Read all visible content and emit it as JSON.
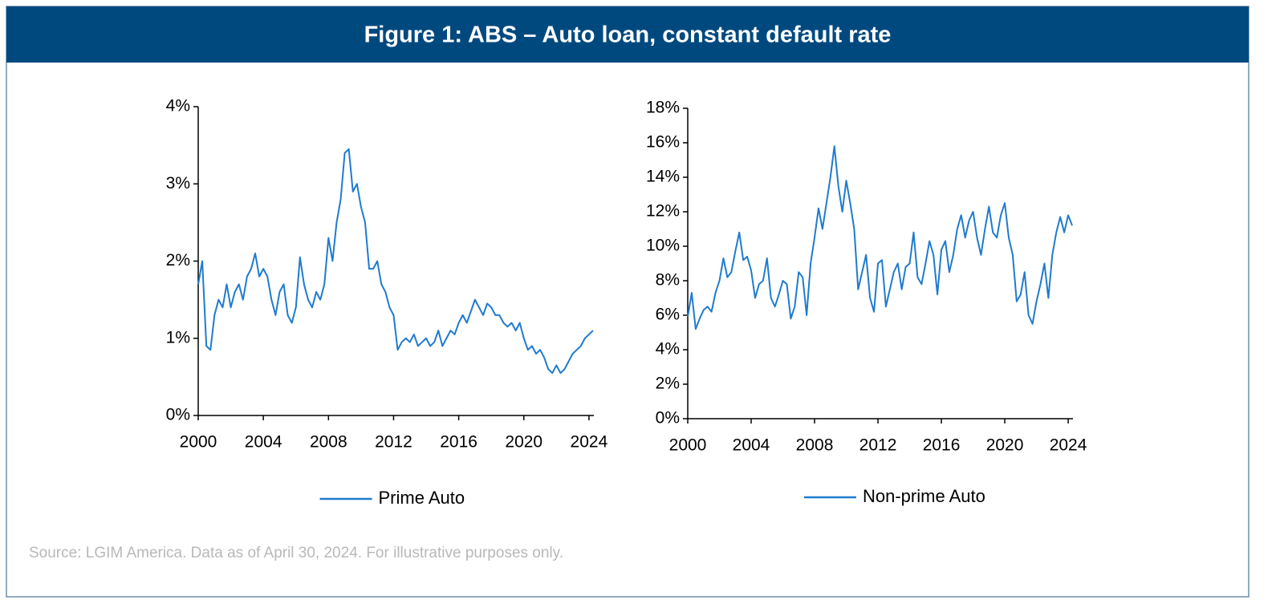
{
  "title": "Figure 1: ABS – Auto loan, constant default rate",
  "source": "Source: LGIM America. Data as of April 30, 2024. For illustrative purposes only.",
  "chart_data": [
    {
      "type": "line",
      "legend": "bottom",
      "x": [
        2000,
        2000.25,
        2000.5,
        2000.75,
        2001,
        2001.25,
        2001.5,
        2001.75,
        2002,
        2002.25,
        2002.5,
        2002.75,
        2003,
        2003.25,
        2003.5,
        2003.75,
        2004,
        2004.25,
        2004.5,
        2004.75,
        2005,
        2005.25,
        2005.5,
        2005.75,
        2006,
        2006.25,
        2006.5,
        2006.75,
        2007,
        2007.25,
        2007.5,
        2007.75,
        2008,
        2008.25,
        2008.5,
        2008.75,
        2009,
        2009.25,
        2009.5,
        2009.75,
        2010,
        2010.25,
        2010.5,
        2010.75,
        2011,
        2011.25,
        2011.5,
        2011.75,
        2012,
        2012.25,
        2012.5,
        2012.75,
        2013,
        2013.25,
        2013.5,
        2013.75,
        2014,
        2014.25,
        2014.5,
        2014.75,
        2015,
        2015.25,
        2015.5,
        2015.75,
        2016,
        2016.25,
        2016.5,
        2016.75,
        2017,
        2017.25,
        2017.5,
        2017.75,
        2018,
        2018.25,
        2018.5,
        2018.75,
        2019,
        2019.25,
        2019.5,
        2019.75,
        2020,
        2020.25,
        2020.5,
        2020.75,
        2021,
        2021.25,
        2021.5,
        2021.75,
        2022,
        2022.25,
        2022.5,
        2022.75,
        2023,
        2023.25,
        2023.5,
        2023.75,
        2024,
        2024.25
      ],
      "series": [
        {
          "name": "Prime Auto",
          "color": "#1f7bcf",
          "values": [
            1.7,
            2.0,
            0.9,
            0.85,
            1.3,
            1.5,
            1.4,
            1.7,
            1.4,
            1.6,
            1.7,
            1.5,
            1.8,
            1.9,
            2.1,
            1.8,
            1.9,
            1.8,
            1.5,
            1.3,
            1.6,
            1.7,
            1.3,
            1.2,
            1.4,
            2.05,
            1.7,
            1.5,
            1.4,
            1.6,
            1.5,
            1.7,
            2.3,
            2.0,
            2.5,
            2.8,
            3.4,
            3.45,
            2.9,
            3.0,
            2.7,
            2.5,
            1.9,
            1.9,
            2.0,
            1.7,
            1.6,
            1.4,
            1.3,
            0.85,
            0.95,
            1.0,
            0.95,
            1.05,
            0.9,
            0.95,
            1.0,
            0.9,
            0.95,
            1.1,
            0.9,
            1.0,
            1.1,
            1.05,
            1.2,
            1.3,
            1.2,
            1.35,
            1.5,
            1.4,
            1.3,
            1.45,
            1.4,
            1.3,
            1.3,
            1.2,
            1.15,
            1.2,
            1.1,
            1.2,
            1.0,
            0.85,
            0.9,
            0.8,
            0.85,
            0.75,
            0.6,
            0.55,
            0.65,
            0.55,
            0.6,
            0.7,
            0.8,
            0.85,
            0.9,
            1.0,
            1.05,
            1.1
          ]
        }
      ],
      "xlim": [
        2000,
        2024.3
      ],
      "xticks": [
        2000,
        2004,
        2008,
        2012,
        2016,
        2020,
        2024
      ],
      "ylim": [
        0,
        4
      ],
      "yticks": [
        {
          "value": 0,
          "label": "0%"
        },
        {
          "value": 1,
          "label": "1%"
        },
        {
          "value": 2,
          "label": "2%"
        },
        {
          "value": 3,
          "label": "3%"
        },
        {
          "value": 4,
          "label": "4%"
        }
      ]
    },
    {
      "type": "line",
      "legend": "bottom",
      "x": [
        2000,
        2000.25,
        2000.5,
        2000.75,
        2001,
        2001.25,
        2001.5,
        2001.75,
        2002,
        2002.25,
        2002.5,
        2002.75,
        2003,
        2003.25,
        2003.5,
        2003.75,
        2004,
        2004.25,
        2004.5,
        2004.75,
        2005,
        2005.25,
        2005.5,
        2005.75,
        2006,
        2006.25,
        2006.5,
        2006.75,
        2007,
        2007.25,
        2007.5,
        2007.75,
        2008,
        2008.25,
        2008.5,
        2008.75,
        2009,
        2009.25,
        2009.5,
        2009.75,
        2010,
        2010.25,
        2010.5,
        2010.75,
        2011,
        2011.25,
        2011.5,
        2011.75,
        2012,
        2012.25,
        2012.5,
        2012.75,
        2013,
        2013.25,
        2013.5,
        2013.75,
        2014,
        2014.25,
        2014.5,
        2014.75,
        2015,
        2015.25,
        2015.5,
        2015.75,
        2016,
        2016.25,
        2016.5,
        2016.75,
        2017,
        2017.25,
        2017.5,
        2017.75,
        2018,
        2018.25,
        2018.5,
        2018.75,
        2019,
        2019.25,
        2019.5,
        2019.75,
        2020,
        2020.25,
        2020.5,
        2020.75,
        2021,
        2021.25,
        2021.5,
        2021.75,
        2022,
        2022.25,
        2022.5,
        2022.75,
        2023,
        2023.25,
        2023.5,
        2023.75,
        2024,
        2024.25
      ],
      "series": [
        {
          "name": "Non-prime Auto",
          "color": "#1f7bcf",
          "values": [
            5.9,
            7.3,
            5.2,
            5.8,
            6.3,
            6.5,
            6.2,
            7.3,
            8.0,
            9.3,
            8.2,
            8.5,
            9.7,
            10.8,
            9.2,
            9.4,
            8.6,
            7.0,
            7.8,
            8.0,
            9.3,
            7.0,
            6.5,
            7.2,
            8.0,
            7.8,
            5.8,
            6.5,
            8.5,
            8.2,
            6.0,
            9.0,
            10.5,
            12.2,
            11.0,
            12.5,
            14.0,
            15.8,
            13.5,
            12.0,
            13.8,
            12.5,
            11.0,
            7.5,
            8.5,
            9.5,
            7.0,
            6.2,
            9.0,
            9.2,
            6.5,
            7.5,
            8.5,
            9.0,
            7.5,
            8.8,
            9.0,
            10.8,
            8.2,
            7.8,
            9.0,
            10.3,
            9.5,
            7.2,
            9.8,
            10.3,
            8.5,
            9.5,
            11.0,
            11.8,
            10.5,
            11.5,
            12.0,
            10.5,
            9.5,
            11.0,
            12.3,
            10.8,
            10.5,
            11.8,
            12.5,
            10.5,
            9.5,
            6.8,
            7.2,
            8.5,
            6.0,
            5.5,
            6.8,
            7.8,
            9.0,
            7.0,
            9.5,
            10.8,
            11.7,
            10.8,
            11.8,
            11.2
          ]
        }
      ],
      "xlim": [
        2000,
        2024.3
      ],
      "xticks": [
        2000,
        2004,
        2008,
        2012,
        2016,
        2020,
        2024
      ],
      "ylim": [
        0,
        18
      ],
      "yticks": [
        {
          "value": 0,
          "label": "0%"
        },
        {
          "value": 2,
          "label": "2%"
        },
        {
          "value": 4,
          "label": "4%"
        },
        {
          "value": 6,
          "label": "6%"
        },
        {
          "value": 8,
          "label": "8%"
        },
        {
          "value": 10,
          "label": "10%"
        },
        {
          "value": 12,
          "label": "12%"
        },
        {
          "value": 14,
          "label": "14%"
        },
        {
          "value": 16,
          "label": "16%"
        },
        {
          "value": 18,
          "label": "18%"
        }
      ]
    }
  ]
}
